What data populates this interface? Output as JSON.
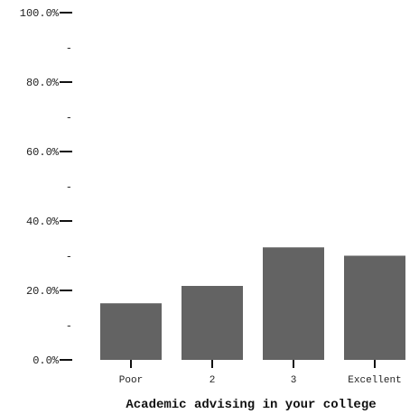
{
  "chart_data": {
    "type": "bar",
    "title": "",
    "xlabel": "Academic advising in your college",
    "ylabel": "",
    "categories": [
      "Poor",
      "2",
      "3",
      "Excellent"
    ],
    "values": [
      16.3,
      21.3,
      32.4,
      30.0
    ],
    "ylim": [
      0,
      100
    ],
    "y_ticks": [
      {
        "value": 0,
        "label": "0.0%"
      },
      {
        "value": 10,
        "label": "-"
      },
      {
        "value": 20,
        "label": "20.0%"
      },
      {
        "value": 30,
        "label": "-"
      },
      {
        "value": 40,
        "label": "40.0%"
      },
      {
        "value": 50,
        "label": "-"
      },
      {
        "value": 60,
        "label": "60.0%"
      },
      {
        "value": 70,
        "label": "-"
      },
      {
        "value": 80,
        "label": "80.0%"
      },
      {
        "value": 90,
        "label": "-"
      },
      {
        "value": 100,
        "label": "100.0%"
      }
    ],
    "grid": false,
    "bar_color": "#636363",
    "axis_color": "#111111"
  }
}
